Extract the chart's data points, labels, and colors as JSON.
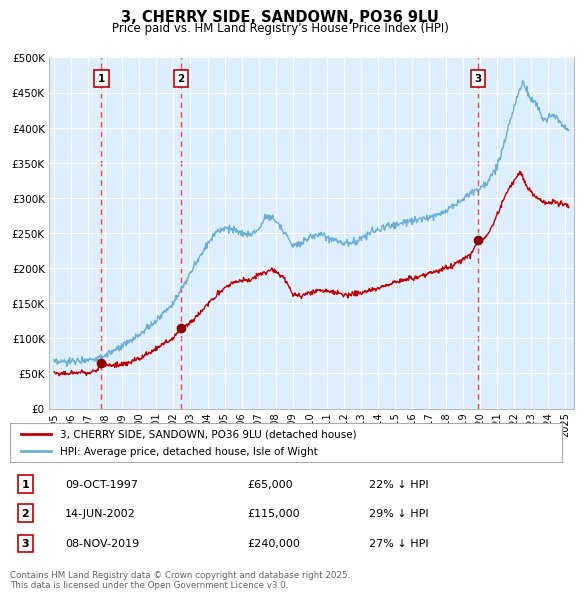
{
  "title": "3, CHERRY SIDE, SANDOWN, PO36 9LU",
  "subtitle": "Price paid vs. HM Land Registry's House Price Index (HPI)",
  "legend_line1": "3, CHERRY SIDE, SANDOWN, PO36 9LU (detached house)",
  "legend_line2": "HPI: Average price, detached house, Isle of Wight",
  "sale_points": [
    {
      "label": "1",
      "date_str": "09-OCT-1997",
      "price": 65000,
      "note": "22% ↓ HPI",
      "x_year": 1997.78
    },
    {
      "label": "2",
      "date_str": "14-JUN-2002",
      "price": 115000,
      "note": "29% ↓ HPI",
      "x_year": 2002.45
    },
    {
      "label": "3",
      "date_str": "08-NOV-2019",
      "price": 240000,
      "note": "27% ↓ HPI",
      "x_year": 2019.86
    }
  ],
  "hpi_anchors": [
    [
      1995.0,
      65000
    ],
    [
      1995.5,
      66000
    ],
    [
      1996.0,
      67000
    ],
    [
      1996.5,
      68500
    ],
    [
      1997.0,
      70000
    ],
    [
      1997.5,
      72000
    ],
    [
      1998.0,
      76000
    ],
    [
      1998.5,
      81000
    ],
    [
      1999.0,
      88000
    ],
    [
      1999.5,
      96000
    ],
    [
      2000.0,
      105000
    ],
    [
      2000.5,
      115000
    ],
    [
      2001.0,
      125000
    ],
    [
      2001.5,
      138000
    ],
    [
      2002.0,
      152000
    ],
    [
      2002.5,
      170000
    ],
    [
      2003.0,
      193000
    ],
    [
      2003.5,
      215000
    ],
    [
      2004.0,
      235000
    ],
    [
      2004.5,
      252000
    ],
    [
      2005.0,
      258000
    ],
    [
      2005.5,
      255000
    ],
    [
      2006.0,
      248000
    ],
    [
      2006.5,
      248000
    ],
    [
      2007.0,
      255000
    ],
    [
      2007.3,
      270000
    ],
    [
      2007.6,
      275000
    ],
    [
      2008.0,
      268000
    ],
    [
      2008.5,
      252000
    ],
    [
      2009.0,
      232000
    ],
    [
      2009.5,
      237000
    ],
    [
      2010.0,
      244000
    ],
    [
      2010.5,
      248000
    ],
    [
      2011.0,
      244000
    ],
    [
      2011.5,
      240000
    ],
    [
      2012.0,
      235000
    ],
    [
      2012.5,
      237000
    ],
    [
      2013.0,
      241000
    ],
    [
      2013.5,
      250000
    ],
    [
      2014.0,
      255000
    ],
    [
      2014.5,
      260000
    ],
    [
      2015.0,
      262000
    ],
    [
      2015.5,
      265000
    ],
    [
      2016.0,
      268000
    ],
    [
      2016.5,
      270000
    ],
    [
      2017.0,
      273000
    ],
    [
      2017.5,
      277000
    ],
    [
      2018.0,
      283000
    ],
    [
      2018.5,
      290000
    ],
    [
      2019.0,
      298000
    ],
    [
      2019.5,
      308000
    ],
    [
      2020.0,
      315000
    ],
    [
      2020.5,
      325000
    ],
    [
      2021.0,
      345000
    ],
    [
      2021.3,
      370000
    ],
    [
      2021.6,
      395000
    ],
    [
      2022.0,
      430000
    ],
    [
      2022.3,
      455000
    ],
    [
      2022.5,
      465000
    ],
    [
      2022.7,
      455000
    ],
    [
      2023.0,
      440000
    ],
    [
      2023.3,
      435000
    ],
    [
      2023.6,
      415000
    ],
    [
      2023.9,
      410000
    ],
    [
      2024.0,
      415000
    ],
    [
      2024.3,
      420000
    ],
    [
      2024.6,
      410000
    ],
    [
      2025.0,
      400000
    ],
    [
      2025.2,
      398000
    ]
  ],
  "price_anchors": [
    [
      1995.0,
      50000
    ],
    [
      1995.5,
      49500
    ],
    [
      1996.0,
      50000
    ],
    [
      1996.5,
      51000
    ],
    [
      1997.0,
      52000
    ],
    [
      1997.5,
      54000
    ],
    [
      1997.78,
      65000
    ],
    [
      1998.0,
      63000
    ],
    [
      1998.5,
      61000
    ],
    [
      1999.0,
      63000
    ],
    [
      1999.5,
      66000
    ],
    [
      2000.0,
      71000
    ],
    [
      2000.5,
      77000
    ],
    [
      2001.0,
      85000
    ],
    [
      2001.5,
      93000
    ],
    [
      2002.0,
      100000
    ],
    [
      2002.45,
      115000
    ],
    [
      2003.0,
      122000
    ],
    [
      2003.5,
      135000
    ],
    [
      2004.0,
      148000
    ],
    [
      2004.5,
      160000
    ],
    [
      2005.0,
      172000
    ],
    [
      2005.5,
      180000
    ],
    [
      2006.0,
      183000
    ],
    [
      2006.5,
      182000
    ],
    [
      2007.0,
      190000
    ],
    [
      2007.5,
      195000
    ],
    [
      2007.8,
      198000
    ],
    [
      2008.0,
      195000
    ],
    [
      2008.5,
      185000
    ],
    [
      2009.0,
      162000
    ],
    [
      2009.5,
      160000
    ],
    [
      2010.0,
      165000
    ],
    [
      2010.5,
      168000
    ],
    [
      2011.0,
      167000
    ],
    [
      2011.5,
      165000
    ],
    [
      2012.0,
      162000
    ],
    [
      2012.5,
      163000
    ],
    [
      2013.0,
      165000
    ],
    [
      2013.5,
      168000
    ],
    [
      2014.0,
      172000
    ],
    [
      2014.5,
      176000
    ],
    [
      2015.0,
      180000
    ],
    [
      2015.5,
      183000
    ],
    [
      2016.0,
      185000
    ],
    [
      2016.5,
      188000
    ],
    [
      2017.0,
      192000
    ],
    [
      2017.5,
      196000
    ],
    [
      2018.0,
      200000
    ],
    [
      2018.5,
      206000
    ],
    [
      2019.0,
      213000
    ],
    [
      2019.5,
      220000
    ],
    [
      2019.86,
      240000
    ],
    [
      2020.0,
      238000
    ],
    [
      2020.3,
      243000
    ],
    [
      2020.6,
      255000
    ],
    [
      2021.0,
      275000
    ],
    [
      2021.3,
      295000
    ],
    [
      2021.6,
      310000
    ],
    [
      2022.0,
      325000
    ],
    [
      2022.3,
      335000
    ],
    [
      2022.5,
      330000
    ],
    [
      2022.7,
      318000
    ],
    [
      2023.0,
      308000
    ],
    [
      2023.3,
      300000
    ],
    [
      2023.6,
      295000
    ],
    [
      2023.9,
      292000
    ],
    [
      2024.0,
      293000
    ],
    [
      2024.3,
      295000
    ],
    [
      2024.6,
      292000
    ],
    [
      2025.0,
      290000
    ],
    [
      2025.2,
      288000
    ]
  ],
  "hpi_line_color": "#6BAED6",
  "price_line_color": "#C00000",
  "sale_marker_color": "#8B0000",
  "dashed_line_color": "#FF4444",
  "label_box_edge_color": "#C00000",
  "label_box_face_color": "#FFFFFF",
  "label_text_color": "#000000",
  "background_plot": "#DDEEFF",
  "background_fig": "#FFFFFF",
  "grid_color": "#FFFFFF",
  "grid_alpha": 1.0,
  "ylim": [
    0,
    500000
  ],
  "xlim_start": 1994.7,
  "xlim_end": 2025.5,
  "footer_text": "Contains HM Land Registry data © Crown copyright and database right 2025.\nThis data is licensed under the Open Government Licence v3.0."
}
